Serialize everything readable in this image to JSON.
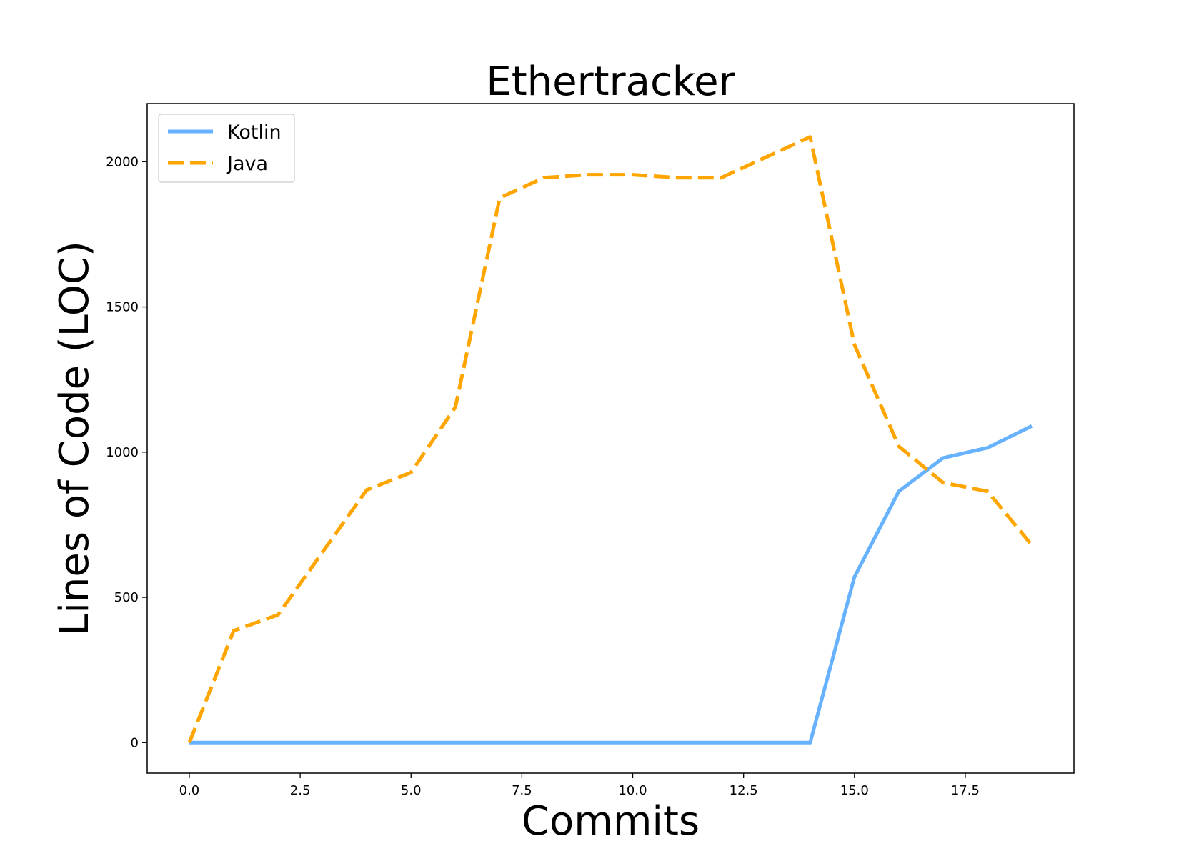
{
  "chart_data": {
    "type": "line",
    "title": "Ethertracker",
    "xlabel": "Commits",
    "ylabel": "Lines of Code (LOC)",
    "xlim": [
      -0.95,
      19.95
    ],
    "ylim": [
      -105,
      2200
    ],
    "x_ticks": [
      0.0,
      2.5,
      5.0,
      7.5,
      10.0,
      12.5,
      15.0,
      17.5
    ],
    "x_tick_labels": [
      "0.0",
      "2.5",
      "5.0",
      "7.5",
      "10.0",
      "12.5",
      "15.0",
      "17.5"
    ],
    "y_ticks": [
      0,
      500,
      1000,
      1500,
      2000
    ],
    "y_tick_labels": [
      "0",
      "500",
      "1000",
      "1500",
      "2000"
    ],
    "x": [
      0,
      1,
      2,
      3,
      4,
      5,
      6,
      7,
      8,
      9,
      10,
      11,
      12,
      13,
      14,
      15,
      16,
      17,
      18,
      19
    ],
    "series": [
      {
        "name": "Kotlin",
        "color": "#66b2ff",
        "style": "solid",
        "values": [
          0,
          0,
          0,
          0,
          0,
          0,
          0,
          0,
          0,
          0,
          0,
          0,
          0,
          0,
          0,
          570,
          865,
          980,
          1015,
          1090
        ]
      },
      {
        "name": "Java",
        "color": "#ffa500",
        "style": "dashed",
        "values": [
          0,
          385,
          440,
          655,
          870,
          930,
          1155,
          1875,
          1945,
          1955,
          1955,
          1945,
          1945,
          2015,
          2085,
          1370,
          1020,
          895,
          865,
          680
        ]
      }
    ],
    "legend_position": "top-left",
    "grid": false
  }
}
